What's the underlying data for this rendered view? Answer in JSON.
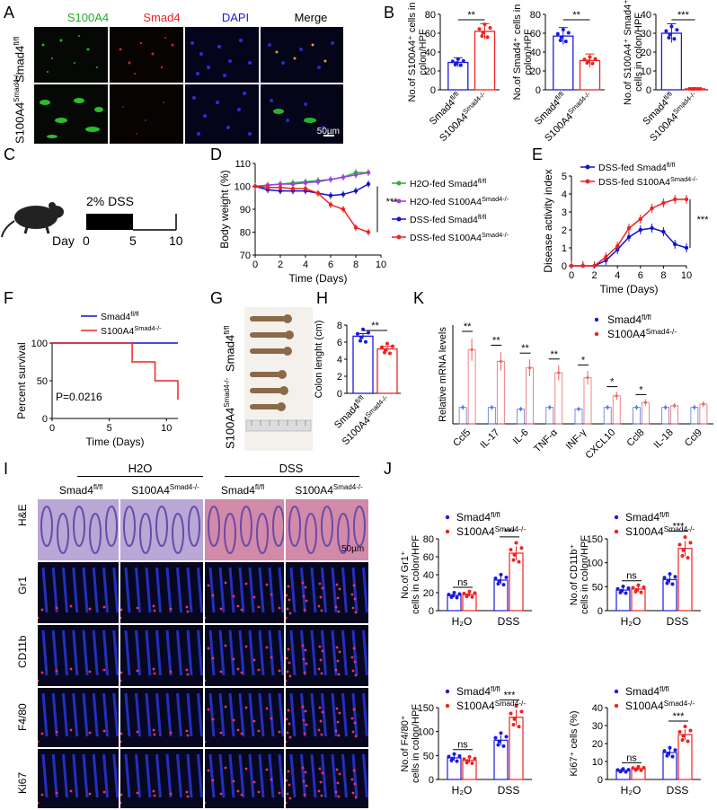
{
  "panels": {
    "A": "A",
    "B": "B",
    "C": "C",
    "D": "D",
    "E": "E",
    "F": "F",
    "G": "G",
    "H": "H",
    "I": "I",
    "J": "J",
    "K": "K"
  },
  "panelA": {
    "columns": [
      "S100A4",
      "Smad4",
      "DAPI",
      "Merge"
    ],
    "rows": [
      {
        "base": "Smad4",
        "sup": "fl/fl"
      },
      {
        "base": "S100A4",
        "sup": "Smad4-/-",
        "suffix": "Smad4"
      }
    ],
    "scale_bar": "50µm"
  },
  "chart_data": [
    {
      "id": "B1",
      "type": "bar",
      "ylabel": "No.of S100A4+ cells in colon/HPF",
      "categories": [
        "Smad4fl/fl",
        "S100A4Smad4-/-"
      ],
      "values": [
        29,
        62
      ],
      "errors": [
        5,
        8
      ],
      "ylim": [
        0,
        80
      ],
      "yticks": [
        0,
        20,
        40,
        60,
        80
      ],
      "significance": "**"
    },
    {
      "id": "B2",
      "type": "bar",
      "ylabel": "No.of Smad4+ cells in colon/HPF",
      "categories": [
        "Smad4fl/fl",
        "S100A4Smad4-/-"
      ],
      "values": [
        57,
        31
      ],
      "errors": [
        9,
        7
      ],
      "ylim": [
        0,
        80
      ],
      "yticks": [
        0,
        20,
        40,
        60,
        80
      ],
      "significance": "**"
    },
    {
      "id": "B3",
      "type": "bar",
      "ylabel": "No.of S100A4+ Smad4+ cells in colon/HPF",
      "categories": [
        "Smad4fl/fl",
        "S100A4Smad4-/-"
      ],
      "values": [
        30,
        0.5
      ],
      "errors": [
        5,
        0.3
      ],
      "ylim": [
        0,
        40
      ],
      "yticks": [
        0,
        10,
        20,
        30,
        40
      ],
      "significance": "***"
    },
    {
      "id": "D",
      "type": "line",
      "xlabel": "Time (Days)",
      "ylabel": "Body weight (%)",
      "x": [
        0,
        1,
        2,
        3,
        4,
        5,
        6,
        7,
        8,
        9
      ],
      "xticks": [
        0,
        2,
        4,
        6,
        8,
        10
      ],
      "yticks": [
        70,
        80,
        90,
        100,
        110
      ],
      "ylim": [
        70,
        110
      ],
      "series": [
        {
          "name": "H2O-fed Smad4fl/fl",
          "color": "#33aa33",
          "values": [
            100,
            100.5,
            101,
            101.5,
            102,
            102.5,
            103,
            104,
            106,
            106
          ]
        },
        {
          "name": "H2O-fed S100A4Smad4-/-",
          "color": "#9944dd",
          "values": [
            100,
            100.5,
            101,
            101,
            101.5,
            102,
            103,
            104,
            105,
            106
          ]
        },
        {
          "name": "DSS-fed Smad4fl/fl",
          "color": "#1111cc",
          "values": [
            100,
            98.5,
            98,
            98,
            98,
            97,
            96,
            96.5,
            98,
            101
          ]
        },
        {
          "name": "DSS-fed S100A4Smad4-/-",
          "color": "#ee2222",
          "values": [
            100,
            99.5,
            99.5,
            99,
            99,
            97,
            92,
            90,
            82,
            80
          ]
        }
      ],
      "significance": "***"
    },
    {
      "id": "E",
      "type": "line",
      "xlabel": "Time (Days)",
      "ylabel": "Disease activity index",
      "x": [
        0,
        1,
        2,
        3,
        4,
        5,
        6,
        7,
        8,
        9,
        10
      ],
      "xticks": [
        0,
        2,
        4,
        6,
        8,
        10
      ],
      "yticks": [
        0,
        1,
        2,
        3,
        4,
        5
      ],
      "ylim": [
        0,
        5
      ],
      "series": [
        {
          "name": "DSS-fed Smad4fl/fl",
          "color": "#1111cc",
          "values": [
            0,
            0,
            0,
            0.3,
            0.9,
            1.6,
            2.0,
            2.1,
            1.9,
            1.2,
            1.0
          ]
        },
        {
          "name": "DSS-fed S100A4Smad4-/-",
          "color": "#ee2222",
          "values": [
            0,
            0,
            0,
            0.5,
            1.1,
            2.1,
            2.6,
            3.2,
            3.5,
            3.7,
            3.7
          ]
        }
      ],
      "significance": "***"
    },
    {
      "id": "F",
      "type": "line",
      "xlabel": "Time (Days)",
      "ylabel": "Percent survival",
      "xticks": [
        0,
        5,
        10
      ],
      "yticks": [
        0,
        50,
        100
      ],
      "ylim": [
        0,
        100
      ],
      "series": [
        {
          "name": "Smad4fl/fl",
          "color": "#1111cc",
          "steps": [
            [
              0,
              100
            ],
            [
              11,
              100
            ]
          ]
        },
        {
          "name": "S100A4Smad4-/-",
          "color": "#ee2222",
          "steps": [
            [
              0,
              100
            ],
            [
              7,
              100
            ],
            [
              7,
              75
            ],
            [
              9,
              75
            ],
            [
              9,
              50
            ],
            [
              11,
              50
            ],
            [
              11,
              25
            ]
          ]
        }
      ],
      "annotation": "P=0.0216"
    },
    {
      "id": "H",
      "type": "bar",
      "ylabel": "Colon lenght (cm)",
      "categories": [
        "Smad4fl/fl",
        "S100A4Smad4-/-"
      ],
      "values": [
        6.7,
        5.2
      ],
      "errors": [
        0.3,
        0.3
      ],
      "ylim": [
        0,
        8
      ],
      "yticks": [
        0,
        2,
        4,
        6,
        8
      ],
      "significance": "**"
    },
    {
      "id": "K",
      "type": "bar",
      "ylabel": "Relative mRNA levels",
      "categories": [
        "Ccl5",
        "IL-17",
        "IL-6",
        "TNF-α",
        "INF-γ",
        "CXCL10",
        "Ccl8",
        "IL-18",
        "Ccl9"
      ],
      "series": [
        {
          "name": "Smad4fl/fl",
          "values": [
            1.0,
            1.0,
            0.9,
            1.0,
            0.9,
            1.0,
            1.0,
            1.0,
            1.0
          ]
        },
        {
          "name": "S100A4Smad4-/-",
          "values": [
            4.5,
            3.8,
            3.4,
            3.1,
            2.8,
            1.7,
            1.3,
            1.1,
            1.2
          ]
        }
      ],
      "significance": [
        "**",
        "**",
        "**",
        "**",
        "*",
        "*",
        "*",
        "",
        ""
      ]
    },
    {
      "id": "J1",
      "type": "bar",
      "ylabel": "No.of Gr1+ cells in colon/HPF",
      "categories": [
        "H2O",
        "DSS"
      ],
      "series": [
        {
          "name": "Smad4fl/fl",
          "values": [
            17,
            34
          ]
        },
        {
          "name": "S100A4Smad4-/-",
          "values": [
            18,
            64
          ]
        }
      ],
      "yticks": [
        0,
        20,
        40,
        60,
        80
      ],
      "ylim": [
        0,
        80
      ],
      "significance": [
        "ns",
        "***"
      ]
    },
    {
      "id": "J2",
      "type": "bar",
      "ylabel": "No.of CD11b+ cells in colon/HPF",
      "categories": [
        "H2O",
        "DSS"
      ],
      "series": [
        {
          "name": "Smad4fl/fl",
          "values": [
            43,
            65
          ]
        },
        {
          "name": "S100A4Smad4-/-",
          "values": [
            45,
            130
          ]
        }
      ],
      "yticks": [
        0,
        50,
        100,
        150
      ],
      "ylim": [
        0,
        150
      ],
      "significance": [
        "ns",
        "***"
      ]
    },
    {
      "id": "J3",
      "type": "bar",
      "ylabel": "No.of F4/80+ cells in colon/HPF",
      "categories": [
        "H2O",
        "DSS"
      ],
      "series": [
        {
          "name": "Smad4fl/fl",
          "values": [
            45,
            82
          ]
        },
        {
          "name": "S100A4Smad4-/-",
          "values": [
            40,
            130
          ]
        }
      ],
      "yticks": [
        0,
        50,
        100,
        150
      ],
      "ylim": [
        0,
        150
      ],
      "significance": [
        "ns",
        "***"
      ]
    },
    {
      "id": "J4",
      "type": "bar",
      "ylabel": "Ki67+ cells (%)",
      "categories": [
        "H2O",
        "DSS"
      ],
      "series": [
        {
          "name": "Smad4fl/fl",
          "values": [
            5,
            15
          ]
        },
        {
          "name": "S100A4Smad4-/-",
          "values": [
            6,
            25
          ]
        }
      ],
      "yticks": [
        0,
        10,
        20,
        30,
        40
      ],
      "ylim": [
        0,
        40
      ],
      "significance": [
        "ns",
        "***"
      ]
    }
  ],
  "panelC": {
    "treatment": "2% DSS",
    "day_label": "Day",
    "days": [
      "0",
      "5",
      "10"
    ]
  },
  "panelG": {
    "row1": "Smad4",
    "row1_sup": "fl/fl",
    "row2": "S100A4",
    "row2_sup": "Smad4-/-",
    "row2_suffix": "Smad4"
  },
  "panelI": {
    "groups": [
      "H2O",
      "DSS"
    ],
    "columns": [
      {
        "base": "Smad4",
        "sup": "fl/fl"
      },
      {
        "base": "S100A4",
        "sup": "Smad4-/-"
      },
      {
        "base": "Smad4",
        "sup": "fl/fl"
      },
      {
        "base": "S100A4",
        "sup": "Smad4-/-"
      }
    ],
    "rows": [
      "H&E",
      "Gr1",
      "CD11b",
      "F4/80",
      "Ki67"
    ],
    "scale_bar": "50µm"
  },
  "colors": {
    "blue": "#1a1adf",
    "red": "#ee2222",
    "green": "#22aa22",
    "purple": "#9944dd"
  }
}
